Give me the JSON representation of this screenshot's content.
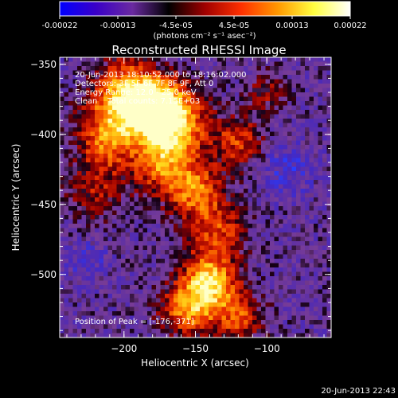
{
  "chart_data": {
    "type": "heatmap",
    "title": "Reconstructed RHESSI Image",
    "xlabel": "Heliocentric X (arcsec)",
    "ylabel": "Heliocentric Y (arcsec)",
    "xlim": [
      -245,
      -55
    ],
    "ylim": [
      -545,
      -345
    ],
    "x_ticks": [
      -200,
      -150,
      -100
    ],
    "y_ticks": [
      -350,
      -400,
      -450,
      -500
    ],
    "colorbar": {
      "min": -0.00022,
      "max": 0.00022,
      "tick_labels": [
        "-0.00022",
        "-0.00013",
        "-4.5e-05",
        "4.5e-05",
        "0.00013",
        "0.00022"
      ],
      "units_label": "(photons cm⁻² s⁻¹ asec⁻²)",
      "colormap": [
        "#0000ff",
        "#3a00c8",
        "#6a2aa0",
        "#000000",
        "#a00000",
        "#ff3000",
        "#ff9800",
        "#ffff40",
        "#ffffff"
      ]
    },
    "annotations": [
      "20-Jun-2013 18:10:52.000 to 18:16:02.000",
      "Detectors: 3F 5F 6F 7F 8F 9F, Att 0",
      "Energy Range: 12.0 - 25.0 keV",
      "Clean    Total counts: 7.15E+03"
    ],
    "peak_label": "Position of Peak = [-176,-371]",
    "peak_position": [
      -176,
      -371
    ],
    "timestamp": "20-Jun-2013 22:43",
    "sources": [
      {
        "x": -180,
        "y": -378,
        "amp": 1.0,
        "w": 14
      },
      {
        "x": -165,
        "y": -392,
        "amp": 0.85,
        "w": 16
      },
      {
        "x": -205,
        "y": -385,
        "amp": 0.75,
        "w": 16
      },
      {
        "x": -175,
        "y": -420,
        "amp": 0.6,
        "w": 15
      },
      {
        "x": -150,
        "y": -440,
        "amp": 0.65,
        "w": 14
      },
      {
        "x": -120,
        "y": -405,
        "amp": 0.5,
        "w": 12
      },
      {
        "x": -135,
        "y": -470,
        "amp": 0.5,
        "w": 14
      },
      {
        "x": -140,
        "y": -505,
        "amp": 0.9,
        "w": 13
      },
      {
        "x": -155,
        "y": -525,
        "amp": 0.7,
        "w": 13
      },
      {
        "x": -120,
        "y": -530,
        "amp": 0.55,
        "w": 12
      },
      {
        "x": -220,
        "y": -440,
        "amp": 0.35,
        "w": 14
      },
      {
        "x": -215,
        "y": -410,
        "amp": 0.45,
        "w": 12
      },
      {
        "x": -200,
        "y": -360,
        "amp": 0.4,
        "w": 12
      },
      {
        "x": -100,
        "y": -370,
        "amp": 0.3,
        "w": 10
      }
    ]
  }
}
